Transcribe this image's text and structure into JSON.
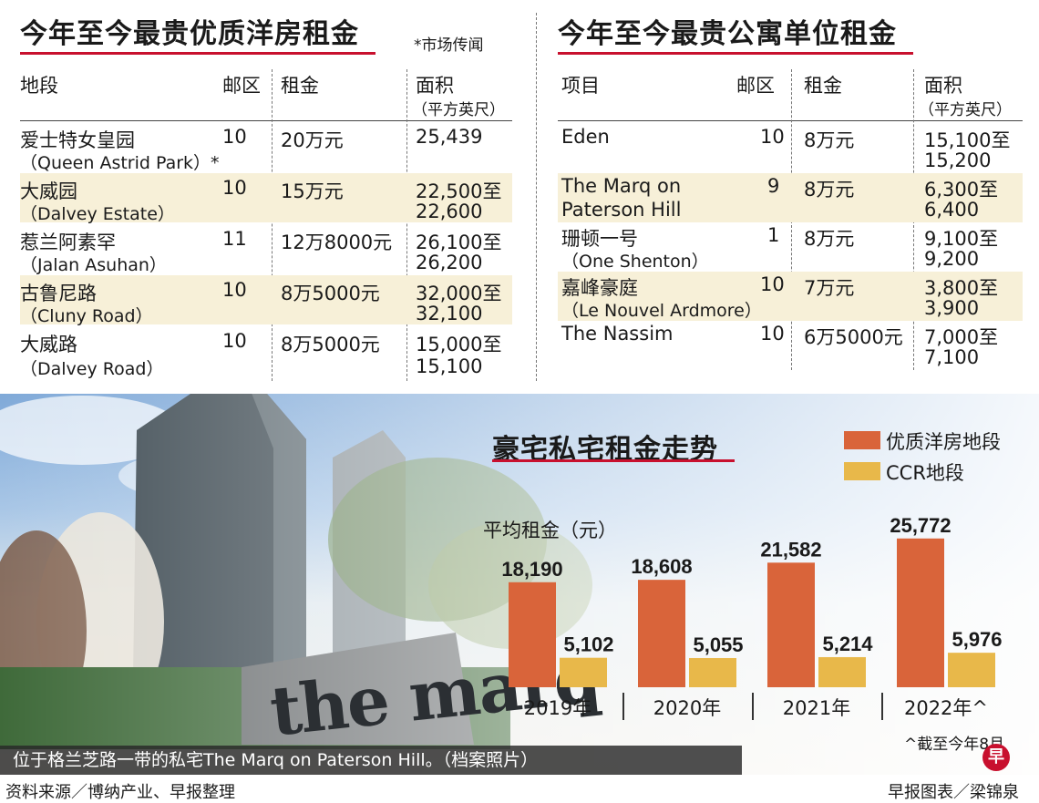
{
  "left_table": {
    "title": "今年至今最贵优质洋房租金",
    "note": "*市场传闻",
    "headers": {
      "location": "地段",
      "district": "邮区",
      "rent": "租金",
      "area": "面积",
      "area_unit": "（平方英尺）"
    },
    "rows": [
      {
        "name_cn": "爱士特女皇园",
        "name_en": "（Queen Astrid Park）*",
        "district": "10",
        "rent": "20万元",
        "area1": "25,439",
        "area2": ""
      },
      {
        "name_cn": "大威园",
        "name_en": "（Dalvey Estate）",
        "district": "10",
        "rent": "15万元",
        "area1": "22,500至",
        "area2": "22,600"
      },
      {
        "name_cn": "惹兰阿素罕",
        "name_en": "（Jalan Asuhan）",
        "district": "11",
        "rent": "12万8000元",
        "area1": "26,100至",
        "area2": "26,200"
      },
      {
        "name_cn": "古鲁尼路",
        "name_en": "（Cluny Road）",
        "district": "10",
        "rent": "8万5000元",
        "area1": "32,000至",
        "area2": "32,100"
      },
      {
        "name_cn": "大威路",
        "name_en": "（Dalvey Road）",
        "district": "10",
        "rent": "8万5000元",
        "area1": "15,000至",
        "area2": "15,100"
      }
    ]
  },
  "right_table": {
    "title": "今年至今最贵公寓单位租金",
    "headers": {
      "project": "项目",
      "district": "邮区",
      "rent": "租金",
      "area": "面积",
      "area_unit": "（平方英尺）"
    },
    "rows": [
      {
        "line1": "Eden",
        "line2": "",
        "district": "10",
        "rent": "8万元",
        "area1": "15,100至",
        "area2": "15,200"
      },
      {
        "line1": "The Marq on",
        "line2": "Paterson Hill",
        "district": "9",
        "rent": "8万元",
        "area1": "6,300至",
        "area2": "6,400"
      },
      {
        "line1": "珊顿一号",
        "line2": "（One Shenton）",
        "district": "1",
        "rent": "8万元",
        "area1": "9,100至",
        "area2": "9,200"
      },
      {
        "line1": "嘉峰豪庭",
        "line2": "（Le Nouvel Ardmore）",
        "district": "10",
        "rent": "7万元",
        "area1": "3,800至",
        "area2": "3,900"
      },
      {
        "line1": "The Nassim",
        "line2": "",
        "district": "10",
        "rent": "6万5000元",
        "area1": "7,000至",
        "area2": "7,100"
      }
    ]
  },
  "chart_data": {
    "type": "bar",
    "title": "豪宅私宅租金走势",
    "ylabel": "平均租金（元）",
    "xlabel": "",
    "categories": [
      "2019年",
      "2020年",
      "2021年",
      "2022年^"
    ],
    "series": [
      {
        "name": "优质洋房地段",
        "values": [
          18190,
          18608,
          21582,
          25772
        ],
        "labels": [
          "18,190",
          "18,608",
          "21,582",
          "25,772"
        ],
        "color": "#d9643a"
      },
      {
        "name": "CCR地段",
        "values": [
          5102,
          5055,
          5214,
          5976
        ],
        "labels": [
          "5,102",
          "5,055",
          "5,214",
          "5,976"
        ],
        "color": "#e8b84a"
      }
    ],
    "legend_position": "top-right",
    "grid": false,
    "footnote": "^截至今年8月"
  },
  "photo": {
    "sign_text": "the marq",
    "caption": "位于格兰芝路一带的私宅The Marq on Paterson Hill。（档案照片）"
  },
  "footer": {
    "source": "资料来源／博纳产业、早报整理",
    "credit": "早报图表／梁锦泉",
    "logo_char": "早",
    "logo_color": "#c8102e"
  }
}
